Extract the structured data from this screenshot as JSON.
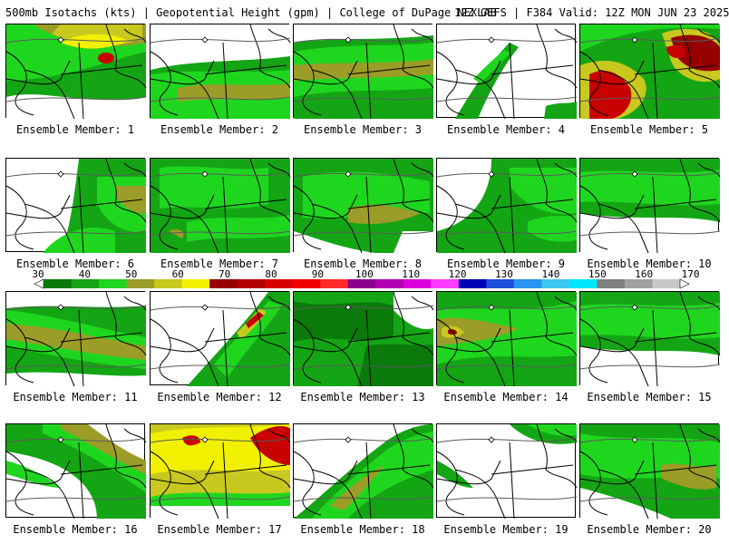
{
  "header": {
    "left": "500mb Isotachs (kts) | Geopotential Height (gpm) | College of DuPage NEXLAB",
    "right": "12Z GEFS | F384 Valid: 12Z MON JUN 23 2025"
  },
  "panels": [
    {
      "label": "Ensemble Member: 1"
    },
    {
      "label": "Ensemble Member: 2"
    },
    {
      "label": "Ensemble Member: 3"
    },
    {
      "label": "Ensemble Member: 4"
    },
    {
      "label": "Ensemble Member: 5"
    },
    {
      "label": "Ensemble Member: 6"
    },
    {
      "label": "Ensemble Member: 7"
    },
    {
      "label": "Ensemble Member: 8"
    },
    {
      "label": "Ensemble Member: 9"
    },
    {
      "label": "Ensemble Member: 10"
    },
    {
      "label": "Ensemble Member: 11"
    },
    {
      "label": "Ensemble Member: 12"
    },
    {
      "label": "Ensemble Member: 13"
    },
    {
      "label": "Ensemble Member: 14"
    },
    {
      "label": "Ensemble Member: 15"
    },
    {
      "label": "Ensemble Member: 16"
    },
    {
      "label": "Ensemble Member: 17"
    },
    {
      "label": "Ensemble Member: 18"
    },
    {
      "label": "Ensemble Member: 19"
    },
    {
      "label": "Ensemble Member: 20"
    }
  ],
  "colorbar": {
    "ticks": [
      "30",
      "40",
      "50",
      "60",
      "70",
      "80",
      "90",
      "100",
      "110",
      "120",
      "130",
      "140",
      "150",
      "160",
      "170"
    ],
    "colors": [
      "#0a7a0a",
      "#14a514",
      "#1fd61f",
      "#9c9c28",
      "#c8c81e",
      "#f0f000",
      "#960000",
      "#b40000",
      "#d80000",
      "#f00000",
      "#ff2b2b",
      "#8c008c",
      "#b400b4",
      "#dc00dc",
      "#ff3cff",
      "#0000b4",
      "#1e50dc",
      "#2896f0",
      "#3cc8f0",
      "#00e6ff",
      "#808080",
      "#a0a0a0",
      "#c8c8c8"
    ]
  },
  "palette": {
    "g1": "#0a7a0a",
    "g2": "#14a514",
    "g3": "#1fd61f",
    "olive": "#9c9c28",
    "y1": "#c8c81e",
    "y2": "#f0f000",
    "r1": "#960000",
    "r2": "#c80000"
  }
}
